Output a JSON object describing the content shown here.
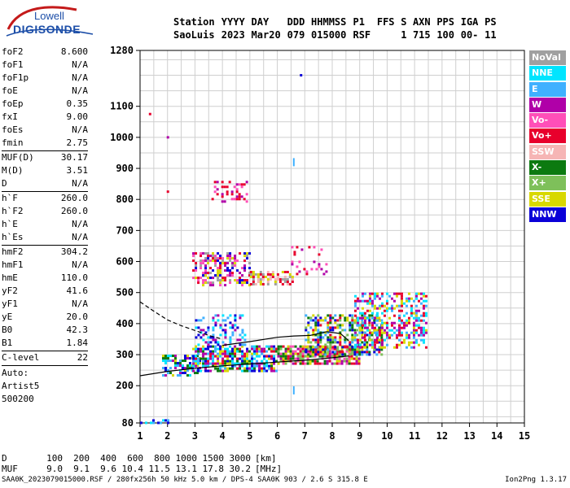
{
  "logo": {
    "line1": "Lowell",
    "line2": "DIGISONDE"
  },
  "header": {
    "labels": [
      "Station",
      "YYYY",
      "DAY",
      "DDD",
      "HHMMSS",
      "P1",
      "FFS",
      "S",
      "AXN",
      "PPS",
      "IGA",
      "PS"
    ],
    "values": [
      "SaoLuis",
      "2023",
      "Mar20",
      "079",
      "015000",
      "RSF",
      "",
      "1",
      "715",
      "100",
      "00-",
      "11"
    ]
  },
  "parameters": [
    [
      {
        "name": "foF2",
        "value": "8.600"
      },
      {
        "name": "foF1",
        "value": "N/A"
      },
      {
        "name": "foF1p",
        "value": "N/A"
      },
      {
        "name": "foE",
        "value": "N/A"
      },
      {
        "name": "foEp",
        "value": "0.35"
      },
      {
        "name": "fxI",
        "value": "9.00"
      },
      {
        "name": "foEs",
        "value": "N/A"
      },
      {
        "name": "fmin",
        "value": "2.75"
      }
    ],
    [
      {
        "name": "MUF(D)",
        "value": "30.17"
      },
      {
        "name": "M(D)",
        "value": "3.51"
      },
      {
        "name": "D",
        "value": "N/A"
      }
    ],
    [
      {
        "name": "h`F",
        "value": "260.0"
      },
      {
        "name": "h`F2",
        "value": "260.0"
      },
      {
        "name": "h`E",
        "value": "N/A"
      },
      {
        "name": "h`Es",
        "value": "N/A"
      }
    ],
    [
      {
        "name": "hmF2",
        "value": "304.2"
      },
      {
        "name": "hmF1",
        "value": "N/A"
      },
      {
        "name": "hmE",
        "value": "110.0"
      },
      {
        "name": "yF2",
        "value": "41.6"
      },
      {
        "name": "yF1",
        "value": "N/A"
      },
      {
        "name": "yE",
        "value": "20.0"
      },
      {
        "name": "B0",
        "value": "42.3"
      },
      {
        "name": "B1",
        "value": "1.84"
      }
    ],
    [
      {
        "name": "C-level",
        "value": "22"
      }
    ]
  ],
  "autoscaling": {
    "line1": "Auto:",
    "line2": "Artist5",
    "line3": "500200"
  },
  "legend": [
    {
      "label": "NoVal",
      "color": "#a0a0a0"
    },
    {
      "label": "NNE",
      "color": "#00e5ff"
    },
    {
      "label": "E",
      "color": "#3fb0ff"
    },
    {
      "label": "W",
      "color": "#b000a8"
    },
    {
      "label": "Vo-",
      "color": "#ff4fb8"
    },
    {
      "label": "Vo+",
      "color": "#e8002c"
    },
    {
      "label": "SSW",
      "color": "#f6b5b5"
    },
    {
      "label": "X-",
      "color": "#0c7a10"
    },
    {
      "label": "X+",
      "color": "#7ec05a"
    },
    {
      "label": "SSE",
      "color": "#d8d800"
    },
    {
      "label": "NNW",
      "color": "#0a00d8"
    }
  ],
  "muf_table": {
    "d_label": "D",
    "d_values": [
      "100",
      "200",
      "400",
      "600",
      "800",
      "1000",
      "1500",
      "3000"
    ],
    "d_unit": "[km]",
    "muf_label": "MUF",
    "muf_values": [
      "9.0",
      "9.1",
      "9.6",
      "10.4",
      "11.5",
      "13.1",
      "17.8",
      "30.2"
    ],
    "muf_unit": "[MHz]"
  },
  "footer": {
    "left": "SAA0K_2023079015000.RSF / 280fx256h 50 kHz 5.0 km / DPS-4 SAA0K 903 / 2.6 S 315.8 E",
    "right": "Ion2Png 1.3.17"
  },
  "chart_data": {
    "type": "scatter",
    "title": "",
    "xlabel": "",
    "ylabel": "",
    "xlim": [
      1,
      15
    ],
    "ylim": [
      80,
      1280
    ],
    "x_ticks": [
      "1",
      "2",
      "3",
      "4",
      "5",
      "6",
      "7",
      "8",
      "9",
      "10",
      "11",
      "12",
      "13",
      "14",
      "15"
    ],
    "y_ticks": [
      {
        "value": 80,
        "label": "80"
      },
      {
        "value": 200,
        "label": "200"
      },
      {
        "value": 300,
        "label": "300"
      },
      {
        "value": 400,
        "label": "400"
      },
      {
        "value": 500,
        "label": "500"
      },
      {
        "value": 600,
        "label": "600"
      },
      {
        "value": 700,
        "label": "700"
      },
      {
        "value": 800,
        "label": "800"
      },
      {
        "value": 900,
        "label": "900"
      },
      {
        "value": 1000,
        "label": "1000"
      },
      {
        "value": 1100,
        "label": "1100"
      },
      {
        "value": 1280,
        "label": "1280"
      }
    ],
    "grid": true,
    "series": [
      {
        "color": "#000000",
        "style": "solid",
        "x": [
          1,
          2,
          3,
          4,
          5,
          6,
          7,
          8,
          8.6
        ],
        "y": [
          232,
          246,
          256,
          264,
          270,
          276,
          282,
          290,
          296
        ]
      },
      {
        "color": "#000000",
        "style": "solid",
        "x": [
          4.0,
          5.0,
          6.0,
          6.6,
          7.2,
          7.8,
          8.3,
          8.6
        ],
        "y": [
          330,
          342,
          356,
          360,
          362,
          374,
          368,
          345
        ]
      },
      {
        "color": "#000000",
        "style": "dashed",
        "x": [
          1,
          1.5,
          2,
          2.5,
          3.0,
          3.5,
          4.0
        ],
        "y": [
          470,
          440,
          412,
          393,
          378,
          362,
          350
        ]
      }
    ],
    "echo_clusters": [
      {
        "x": [
          1.0,
          2.0
        ],
        "y": [
          80,
          92
        ],
        "density": 0.6,
        "colors": [
          "#3fb0ff",
          "#0a00d8",
          "#00e5ff"
        ]
      },
      {
        "x": [
          1.8,
          3.2
        ],
        "y": [
          235,
          300
        ],
        "density": 0.55,
        "colors": [
          "#0a00d8",
          "#b000a8",
          "#00e5ff",
          "#3fb0ff",
          "#0c7a10",
          "#d8d800"
        ]
      },
      {
        "x": [
          2.9,
          6.0
        ],
        "y": [
          250,
          330
        ],
        "density": 0.7,
        "colors": [
          "#b000a8",
          "#0a00d8",
          "#e8002c",
          "#3fb0ff",
          "#00e5ff",
          "#d8d800",
          "#0c7a10"
        ]
      },
      {
        "x": [
          6.0,
          9.0
        ],
        "y": [
          270,
          330
        ],
        "density": 0.75,
        "colors": [
          "#e8002c",
          "#ff4fb8",
          "#d8d800",
          "#0c7a10",
          "#b000a8",
          "#7ec05a"
        ]
      },
      {
        "x": [
          7.0,
          9.8
        ],
        "y": [
          300,
          430
        ],
        "density": 0.55,
        "colors": [
          "#e8002c",
          "#d8d800",
          "#7ec05a",
          "#0c7a10",
          "#3fb0ff",
          "#0a00d8"
        ]
      },
      {
        "x": [
          8.8,
          11.4
        ],
        "y": [
          320,
          500
        ],
        "density": 0.45,
        "colors": [
          "#3fb0ff",
          "#00e5ff",
          "#e8002c",
          "#d8d800",
          "#b000a8"
        ]
      },
      {
        "x": [
          3.0,
          4.8
        ],
        "y": [
          330,
          430
        ],
        "density": 0.3,
        "colors": [
          "#0a00d8",
          "#b000a8",
          "#00e5ff",
          "#3fb0ff"
        ]
      },
      {
        "x": [
          2.9,
          5.0
        ],
        "y": [
          520,
          630
        ],
        "density": 0.45,
        "colors": [
          "#b000a8",
          "#e8002c",
          "#d8d800",
          "#ff4fb8",
          "#0a00d8",
          "#a0a0a0"
        ]
      },
      {
        "x": [
          5.0,
          6.6
        ],
        "y": [
          530,
          570
        ],
        "density": 0.5,
        "colors": [
          "#d8d800",
          "#a0a0a0",
          "#f6b5b5",
          "#e8002c"
        ]
      },
      {
        "x": [
          3.6,
          4.9
        ],
        "y": [
          790,
          860
        ],
        "density": 0.25,
        "colors": [
          "#b000a8",
          "#e8002c",
          "#ff4fb8"
        ]
      },
      {
        "x": [
          6.5,
          7.8
        ],
        "y": [
          560,
          650
        ],
        "density": 0.15,
        "colors": [
          "#ff4fb8",
          "#e8002c",
          "#b000a8"
        ]
      }
    ],
    "isolated_points": [
      {
        "x": 1.35,
        "y": 1075,
        "color": "#e8002c"
      },
      {
        "x": 2.0,
        "y": 1000,
        "color": "#b000a8"
      },
      {
        "x": 2.0,
        "y": 825,
        "color": "#e8002c"
      },
      {
        "x": 6.6,
        "y": 920,
        "color": "#3fb0ff"
      },
      {
        "x": 6.6,
        "y": 185,
        "color": "#3fb0ff"
      },
      {
        "x": 6.85,
        "y": 1200,
        "color": "#0a00d8"
      }
    ]
  }
}
